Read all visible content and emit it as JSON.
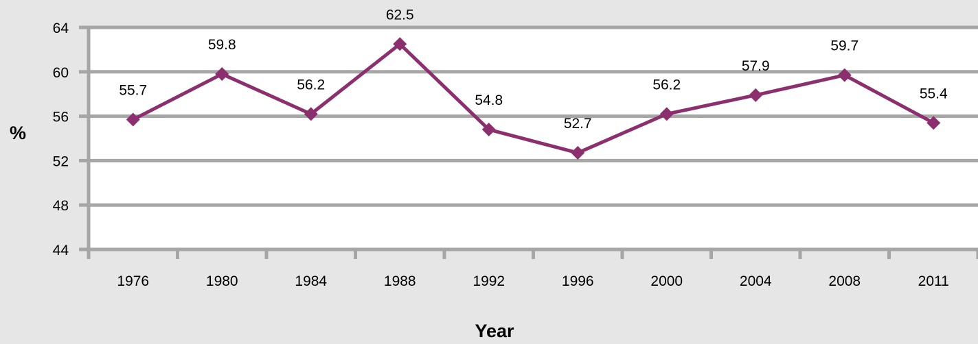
{
  "chart_data": {
    "type": "line",
    "title": "",
    "xlabel": "Year",
    "ylabel": "%",
    "categories": [
      "1976",
      "1980",
      "1984",
      "1988",
      "1992",
      "1996",
      "2000",
      "2004",
      "2008",
      "2011"
    ],
    "series": [
      {
        "values": [
          55.7,
          59.8,
          56.2,
          62.5,
          54.8,
          52.7,
          56.2,
          57.9,
          59.7,
          55.4
        ],
        "labels": [
          "55.7",
          "59.8",
          "56.2",
          "62.5",
          "54.8",
          "52.7",
          "56.2",
          "57.9",
          "59.7",
          "55.4"
        ],
        "color": "#8b2f6e",
        "marker": "diamond"
      }
    ],
    "ylim": [
      44,
      64
    ],
    "yticks": [
      "44",
      "48",
      "52",
      "56",
      "60",
      "64"
    ],
    "grid": true,
    "legend": "none",
    "colors": {
      "page_background": "#e6e6e6",
      "plot_background": "#ffffff",
      "gridline": "#a6a6a6",
      "axis": "#a6a6a6"
    }
  }
}
